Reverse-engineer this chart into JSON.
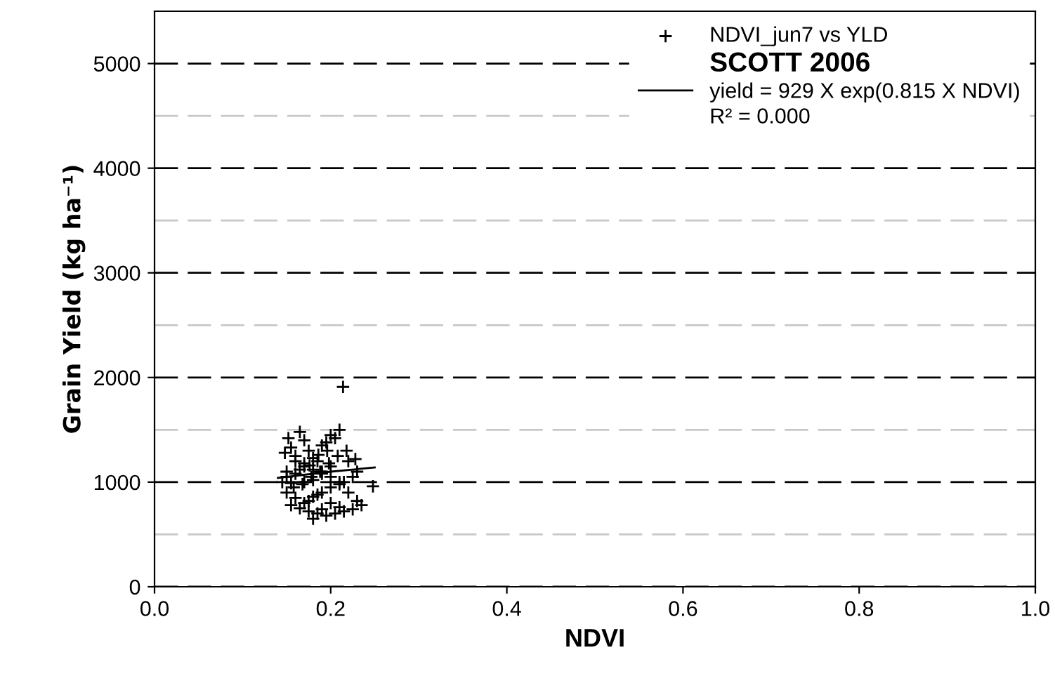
{
  "chart_data": {
    "type": "scatter",
    "xlabel": "NDVI",
    "ylabel": "Grain Yield (kg ha⁻¹)",
    "title": "SCOTT 2006",
    "xlim": [
      0,
      1.0
    ],
    "ylim": [
      0,
      5500
    ],
    "xticks": [
      {
        "value": 0,
        "label": "0.0"
      },
      0.2,
      0.4,
      0.6,
      0.8,
      {
        "value": 1.0,
        "label": "1.0"
      }
    ],
    "yticks": [
      0,
      1000,
      2000,
      3000,
      4000,
      5000
    ],
    "grid": "y",
    "legend": "top right",
    "ref_lines": [
      {
        "axis": "y",
        "value": 500,
        "color": "#c8c8c8",
        "line_style": "dashed"
      },
      {
        "axis": "y",
        "value": 1500,
        "color": "#c8c8c8",
        "line_style": "dashed"
      },
      {
        "axis": "y",
        "value": 2500,
        "color": "#c8c8c8",
        "line_style": "dashed"
      },
      {
        "axis": "y",
        "value": 3500,
        "color": "#c8c8c8",
        "line_style": "dashed"
      },
      {
        "axis": "y",
        "value": 4500,
        "color": "#c8c8c8",
        "line_style": "dashed"
      }
    ],
    "annotations": [
      "R² = 0.000"
    ],
    "series": [
      {
        "name": "NDVI_jun7 vs YLD",
        "marker": "cross",
        "color": "#000000",
        "x": [
          0.214,
          0.165,
          0.17,
          0.152,
          0.155,
          0.148,
          0.16,
          0.175,
          0.18,
          0.19,
          0.2,
          0.21,
          0.205,
          0.195,
          0.185,
          0.17,
          0.165,
          0.16,
          0.15,
          0.145,
          0.155,
          0.17,
          0.18,
          0.19,
          0.2,
          0.22,
          0.225,
          0.23,
          0.248,
          0.215,
          0.21,
          0.2,
          0.19,
          0.185,
          0.18,
          0.175,
          0.17,
          0.16,
          0.15,
          0.155,
          0.165,
          0.175,
          0.185,
          0.195,
          0.205,
          0.215,
          0.225,
          0.235,
          0.23,
          0.22,
          0.21,
          0.2,
          0.19,
          0.18,
          0.17,
          0.16,
          0.15,
          0.158,
          0.168,
          0.178,
          0.188,
          0.198,
          0.208,
          0.218,
          0.228,
          0.196,
          0.186,
          0.176,
          0.2,
          0.21,
          0.19,
          0.18
        ],
        "values": [
          1910,
          1480,
          1400,
          1420,
          1330,
          1280,
          1250,
          1300,
          1230,
          1350,
          1450,
          1500,
          1420,
          1380,
          1200,
          1150,
          1120,
          1080,
          1050,
          1000,
          990,
          1000,
          1020,
          1100,
          1150,
          1200,
          1050,
          1100,
          960,
          1000,
          980,
          950,
          900,
          880,
          860,
          820,
          800,
          850,
          900,
          780,
          750,
          720,
          700,
          680,
          700,
          720,
          740,
          780,
          820,
          900,
          1000,
          1050,
          1080,
          1120,
          1180,
          1200,
          1100,
          950,
          980,
          1050,
          1100,
          1180,
          1250,
          1300,
          1220,
          1300,
          1260,
          1160,
          800,
          760,
          740,
          650
        ]
      },
      {
        "name": "yield = 929 X exp(0.815 X NDVI)",
        "type": "line",
        "color": "#000000",
        "line_style": "solid",
        "x": [
          0.14,
          0.2,
          0.25
        ],
        "values": [
          1040,
          1100,
          1140
        ]
      }
    ]
  }
}
